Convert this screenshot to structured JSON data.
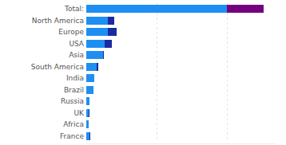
{
  "chart_data": {
    "type": "bar",
    "orientation": "horizontal",
    "stacked": true,
    "categories": [
      "Total:",
      "North America",
      "Europe",
      "USA",
      "Asia",
      "South America",
      "India",
      "Brazil",
      "Russia",
      "UK",
      "Africa",
      "France"
    ],
    "series": [
      {
        "color": "#1e8ff2",
        "values": [
          200,
          31,
          31,
          26,
          24,
          15,
          11,
          10,
          5,
          3,
          3,
          4
        ]
      },
      {
        "color": "#1b2a9e",
        "colors": [
          "#74007f",
          "#1b2a9e",
          "#1b2a9e",
          "#1b2a9e",
          "#1b2a9e",
          "#1b2a9e",
          "#1b2a9e",
          "#1b2a9e",
          "#1b2a9e",
          "#1b2a9e",
          "#1b2a9e",
          "#1b2a9e"
        ],
        "values": [
          52,
          9,
          12,
          10,
          1,
          2,
          0,
          0,
          0,
          2,
          0,
          2
        ]
      }
    ],
    "xlim": [
      0,
      270
    ],
    "xticks": [
      0,
      100,
      200
    ],
    "grid": true,
    "tick_labels": "y"
  }
}
